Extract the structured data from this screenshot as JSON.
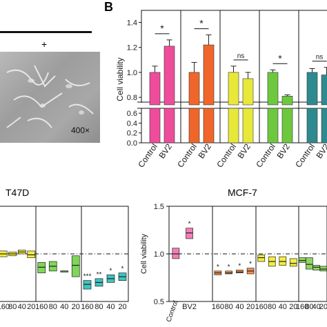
{
  "panel_a": {
    "condition_symbol": "+",
    "magnification": "400×"
  },
  "panel_b": {
    "label": "B",
    "ylabel": "Cell viability",
    "axis_break": true,
    "upper_ticks": [
      "1.4",
      "1.2",
      "1.0",
      "0.8"
    ],
    "lower_ticks": [
      "0.6",
      "0.4",
      "0.2",
      "0.0"
    ],
    "categories": [
      "Control",
      "BV2"
    ]
  },
  "panel_c": {
    "title": "T47D",
    "x_tick_labels": [
      "160",
      "80",
      "40",
      "20"
    ]
  },
  "panel_d": {
    "title": "MCF-7",
    "ylabel": "Cell viability",
    "y_ticks": [
      "1.5",
      "1.0",
      "0.5"
    ],
    "x_tick_labels": [
      "160",
      "80",
      "40",
      "20"
    ],
    "x_category_labels": [
      "Control",
      "BV2"
    ]
  },
  "chart_data": [
    {
      "type": "bar",
      "panel": "B",
      "ylabel": "Cell viability",
      "ylim": [
        0,
        1.5
      ],
      "categories": [
        "Control",
        "BV2"
      ],
      "groups": [
        {
          "colors": [
            "#ee4d9b",
            "#ee4d9b"
          ],
          "values": [
            1.0,
            1.21
          ],
          "errors": [
            0.05,
            0.05
          ],
          "significance": "*"
        },
        {
          "colors": [
            "#f0662a",
            "#f0662a"
          ],
          "values": [
            1.0,
            1.22
          ],
          "errors": [
            0.08,
            0.08
          ],
          "significance": "*"
        },
        {
          "colors": [
            "#e8e83a",
            "#e8e83a"
          ],
          "values": [
            1.0,
            0.95
          ],
          "errors": [
            0.05,
            0.05
          ],
          "significance": "ns"
        },
        {
          "colors": [
            "#6ec83f",
            "#6ec83f"
          ],
          "values": [
            1.0,
            0.81
          ],
          "errors": [
            0.02,
            0.01
          ],
          "significance": "*"
        },
        {
          "colors": [
            "#2f8a8f",
            "#2f8a8f"
          ],
          "values": [
            1.0,
            0.98
          ],
          "errors": [
            0.03,
            0.06
          ],
          "significance": "ns"
        }
      ]
    },
    {
      "type": "box",
      "panel": "T47D",
      "ylim": [
        0.5,
        1.5
      ],
      "reference_line": 1.0,
      "x_tick_labels": [
        "160",
        "80",
        "40",
        "20"
      ],
      "groups": [
        {
          "color": "#f4ee3c",
          "boxes": [
            {
              "low": 0.97,
              "median": 1.0,
              "high": 1.03,
              "sig": ""
            },
            {
              "low": 0.98,
              "median": 1.0,
              "high": 1.02,
              "sig": ""
            },
            {
              "low": 1.0,
              "median": 1.02,
              "high": 1.04,
              "sig": ""
            },
            {
              "low": 0.96,
              "median": 0.99,
              "high": 1.03,
              "sig": ""
            }
          ]
        },
        {
          "color": "#7fd65a",
          "boxes": [
            {
              "low": 0.8,
              "median": 0.86,
              "high": 0.91,
              "sig": ""
            },
            {
              "low": 0.82,
              "median": 0.87,
              "high": 0.92,
              "sig": ""
            },
            {
              "low": 0.82,
              "median": 0.82,
              "high": 0.82,
              "sig": ""
            },
            {
              "low": 0.76,
              "median": 0.88,
              "high": 0.98,
              "sig": ""
            }
          ]
        },
        {
          "color": "#3ec4c0",
          "boxes": [
            {
              "low": 0.63,
              "median": 0.68,
              "high": 0.72,
              "sig": "***"
            },
            {
              "low": 0.66,
              "median": 0.7,
              "high": 0.74,
              "sig": "**"
            },
            {
              "low": 0.7,
              "median": 0.74,
              "high": 0.78,
              "sig": "*"
            },
            {
              "low": 0.72,
              "median": 0.76,
              "high": 0.8,
              "sig": "*"
            }
          ]
        }
      ]
    },
    {
      "type": "box",
      "panel": "MCF-7",
      "ylabel": "Cell viability",
      "ylim": [
        0.5,
        1.5
      ],
      "reference_line": 1.0,
      "groups": [
        {
          "labels": [
            "Control",
            "BV2"
          ],
          "color": "#f27fb4",
          "boxes": [
            {
              "low": 0.95,
              "median": 1.0,
              "high": 1.06,
              "sig": ""
            },
            {
              "low": 1.16,
              "median": 1.22,
              "high": 1.27,
              "sig": "*"
            }
          ]
        },
        {
          "labels": [
            "160",
            "80",
            "40",
            "20"
          ],
          "color": "#f5904a",
          "boxes": [
            {
              "low": 0.78,
              "median": 0.8,
              "high": 0.82,
              "sig": "*"
            },
            {
              "low": 0.79,
              "median": 0.8,
              "high": 0.82,
              "sig": "*"
            },
            {
              "low": 0.8,
              "median": 0.81,
              "high": 0.83,
              "sig": "*"
            },
            {
              "low": 0.79,
              "median": 0.82,
              "high": 0.85,
              "sig": "*"
            }
          ]
        },
        {
          "labels": [
            "160",
            "80",
            "40",
            "20"
          ],
          "color": "#f4ee3c",
          "boxes": [
            {
              "low": 0.92,
              "median": 0.96,
              "high": 0.99,
              "sig": ""
            },
            {
              "low": 0.87,
              "median": 0.92,
              "high": 0.97,
              "sig": ""
            },
            {
              "low": 0.88,
              "median": 0.92,
              "high": 0.97,
              "sig": ""
            },
            {
              "low": 0.87,
              "median": 0.9,
              "high": 0.95,
              "sig": ""
            }
          ]
        },
        {
          "labels": [
            "160",
            "80",
            "40",
            "20"
          ],
          "color": "#8fd660",
          "boxes": [
            {
              "low": 0.91,
              "median": 0.93,
              "high": 0.96,
              "sig": ""
            },
            {
              "low": 0.84,
              "median": 0.89,
              "high": 0.96,
              "sig": ""
            },
            {
              "low": 0.83,
              "median": 0.86,
              "high": 0.88,
              "sig": ""
            },
            {
              "low": 0.82,
              "median": 0.84,
              "high": 0.87,
              "sig": ""
            }
          ]
        }
      ]
    }
  ]
}
